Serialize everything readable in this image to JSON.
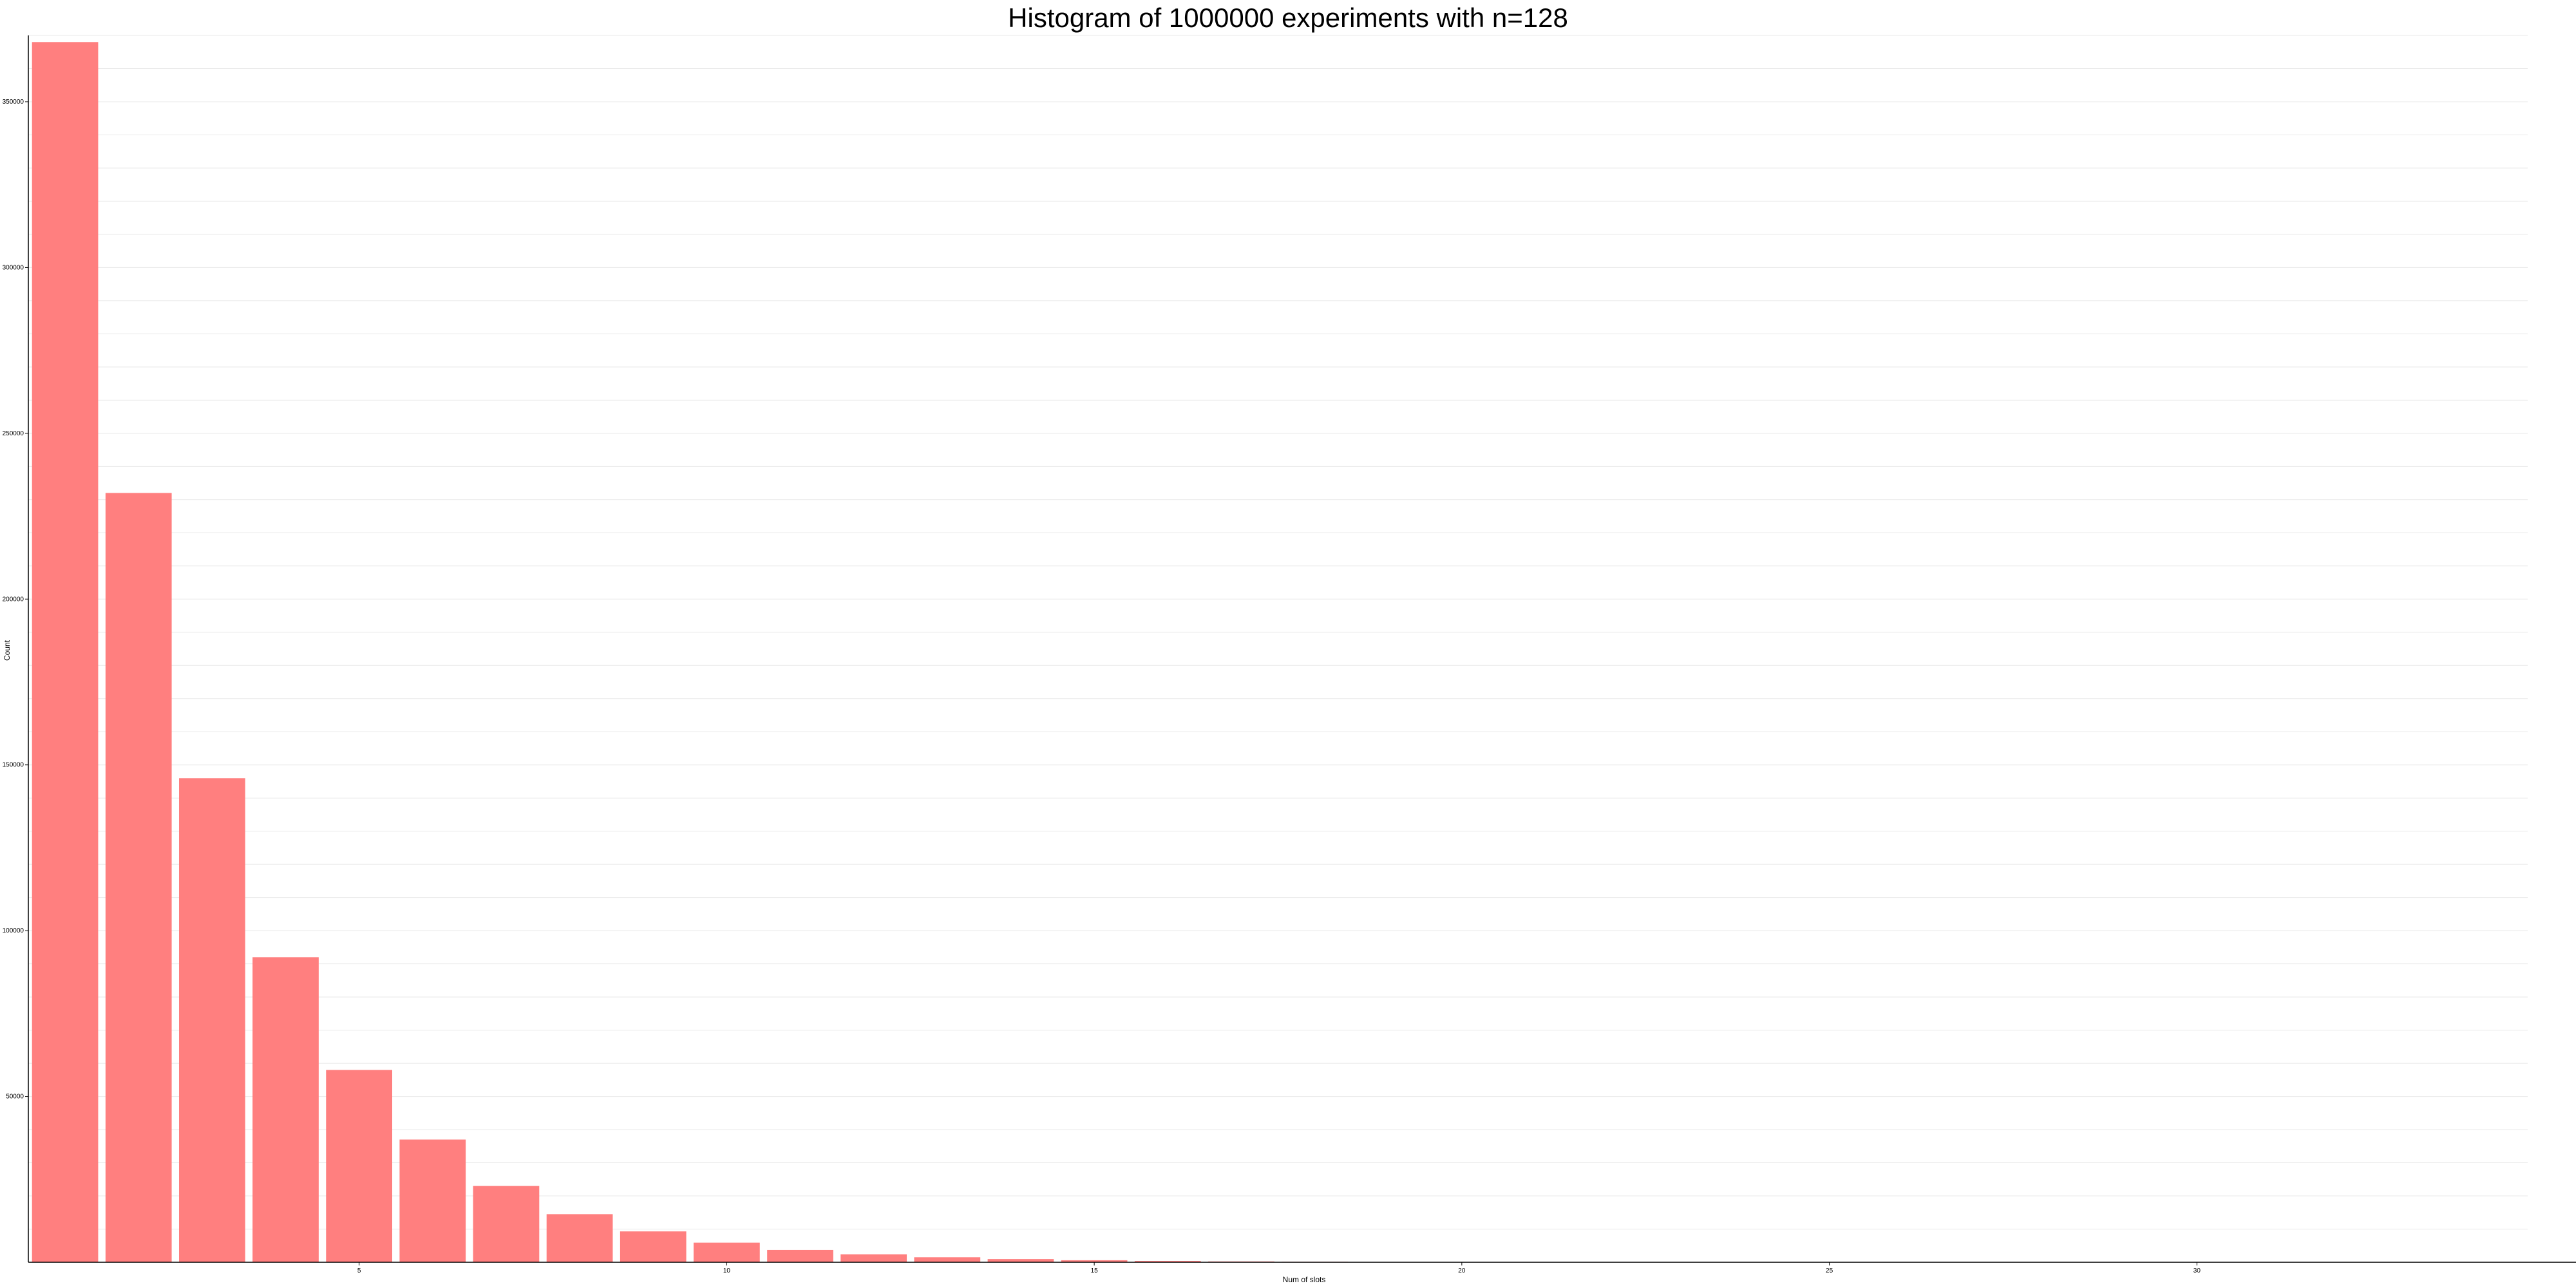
{
  "chart_data": {
    "type": "bar",
    "title": "Histogram of 1000000 experiments with n=128",
    "xlabel": "Num of slots",
    "ylabel": "Count",
    "x": [
      1,
      2,
      3,
      4,
      5,
      6,
      7,
      8,
      9,
      10,
      11,
      12,
      13,
      14,
      15,
      16,
      17,
      18,
      19,
      20
    ],
    "values": [
      368000,
      232000,
      146000,
      92000,
      58000,
      37000,
      23000,
      14500,
      9300,
      5900,
      3700,
      2400,
      1500,
      950,
      600,
      380,
      240,
      150,
      95,
      60
    ],
    "xlim": [
      0.5,
      34.5
    ],
    "ylim": [
      0,
      370000
    ],
    "x_ticks": [
      5,
      10,
      15,
      20,
      25,
      30
    ],
    "x_tick_labels": [
      "5",
      "10",
      "15",
      "20",
      "25",
      "30"
    ],
    "y_ticks": [
      50000,
      100000,
      150000,
      200000,
      250000,
      300000,
      350000
    ],
    "y_tick_labels": [
      "50000",
      "100000",
      "150000",
      "200000",
      "250000",
      "300000",
      "350000"
    ],
    "minor_grid_step": 10000,
    "grid": true,
    "bar_color": "#ff7f7f"
  }
}
